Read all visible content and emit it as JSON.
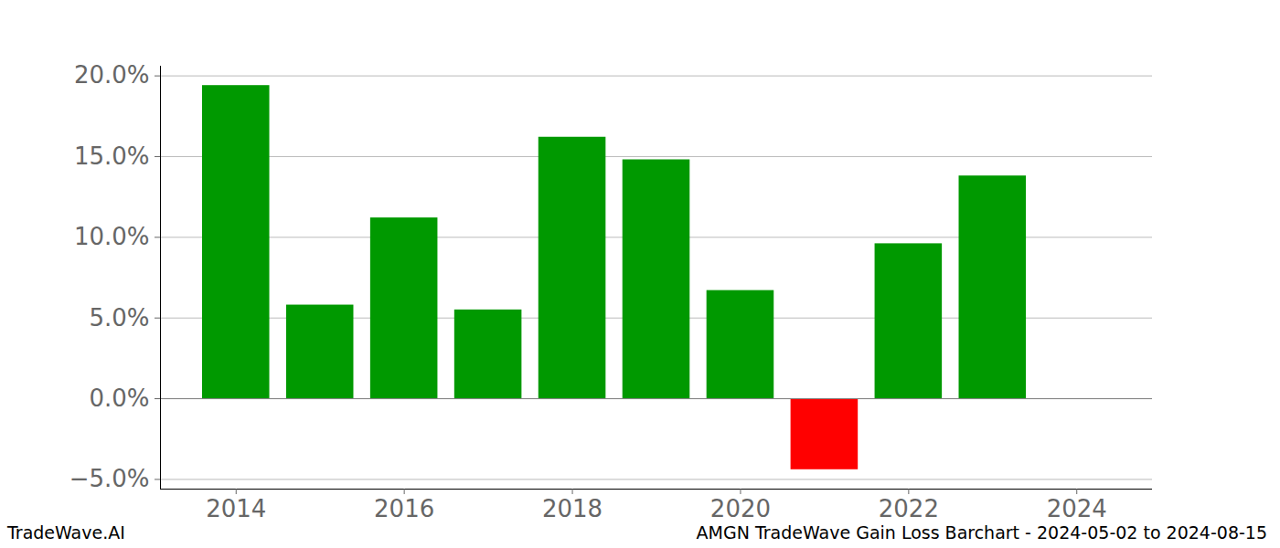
{
  "chart_data": {
    "type": "bar",
    "title": "AMGN TradeWave Gain Loss Barchart - 2024-05-02 to 2024-08-15",
    "source": "TradeWave.AI",
    "x": [
      2014,
      2015,
      2016,
      2017,
      2018,
      2019,
      2020,
      2021,
      2022,
      2023
    ],
    "values": [
      19.4,
      5.8,
      11.2,
      5.5,
      16.2,
      14.8,
      6.7,
      -4.4,
      9.6,
      13.8
    ],
    "colors": [
      "#009900",
      "#009900",
      "#009900",
      "#009900",
      "#009900",
      "#009900",
      "#009900",
      "#ff0000",
      "#009900",
      "#009900"
    ],
    "xlim": [
      2013.1,
      2024.9
    ],
    "xticks": [
      2014,
      2016,
      2018,
      2020,
      2022,
      2024
    ],
    "ylim": [
      -5.6,
      20.6
    ],
    "yticks": [
      {
        "value": -5,
        "label": "−5.0%"
      },
      {
        "value": 0,
        "label": "0.0%"
      },
      {
        "value": 5,
        "label": "5.0%"
      },
      {
        "value": 10,
        "label": "10.0%"
      },
      {
        "value": 15,
        "label": "15.0%"
      },
      {
        "value": 20,
        "label": "20.0%"
      }
    ],
    "grid": true
  }
}
